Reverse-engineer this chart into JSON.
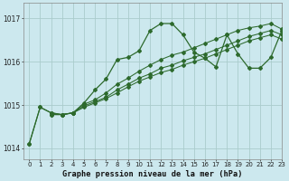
{
  "title": "Graphe pression niveau de la mer (hPa)",
  "bg_color": "#cce8ee",
  "grid_color": "#aacccc",
  "line_color": "#2d6a2d",
  "xlim": [
    -0.5,
    23
  ],
  "ylim": [
    1013.75,
    1017.35
  ],
  "yticks": [
    1014,
    1015,
    1016,
    1017
  ],
  "xticks": [
    0,
    1,
    2,
    3,
    4,
    5,
    6,
    7,
    8,
    9,
    10,
    11,
    12,
    13,
    14,
    15,
    16,
    17,
    18,
    19,
    20,
    21,
    22,
    23
  ],
  "series": [
    {
      "x": [
        0,
        1,
        2,
        3,
        4,
        5,
        6,
        7,
        8,
        9,
        10,
        11,
        12,
        13,
        14,
        15,
        16,
        17,
        18,
        19,
        20,
        21,
        22,
        23
      ],
      "y": [
        1014.1,
        1014.95,
        1014.82,
        1014.78,
        1014.82,
        1015.05,
        1015.35,
        1015.6,
        1016.05,
        1016.1,
        1016.25,
        1016.72,
        1016.88,
        1016.88,
        1016.62,
        1016.22,
        1016.08,
        1015.88,
        1016.62,
        1016.18,
        1015.85,
        1015.85,
        1016.1,
        1016.72
      ]
    },
    {
      "x": [
        0,
        1,
        2,
        3,
        4,
        5,
        6,
        7,
        8,
        9,
        10,
        11,
        12,
        13,
        14,
        15,
        16,
        17,
        18,
        19,
        20,
        21,
        22,
        23
      ],
      "y": [
        1014.1,
        1014.95,
        1014.82,
        1014.78,
        1014.82,
        1015.02,
        1015.12,
        1015.28,
        1015.48,
        1015.62,
        1015.78,
        1015.92,
        1016.05,
        1016.15,
        1016.22,
        1016.32,
        1016.42,
        1016.52,
        1016.62,
        1016.72,
        1016.78,
        1016.82,
        1016.88,
        1016.75
      ]
    },
    {
      "x": [
        2,
        3,
        4,
        5,
        6,
        7,
        8,
        9,
        10,
        11,
        12,
        13,
        14,
        15,
        16,
        17,
        18,
        19,
        20,
        21,
        22,
        23
      ],
      "y": [
        1014.78,
        1014.78,
        1014.82,
        1014.98,
        1015.08,
        1015.18,
        1015.35,
        1015.48,
        1015.62,
        1015.72,
        1015.85,
        1015.92,
        1016.02,
        1016.1,
        1016.18,
        1016.28,
        1016.38,
        1016.48,
        1016.58,
        1016.65,
        1016.72,
        1016.62
      ]
    },
    {
      "x": [
        2,
        3,
        4,
        5,
        6,
        7,
        8,
        9,
        10,
        11,
        12,
        13,
        14,
        15,
        16,
        17,
        18,
        19,
        20,
        21,
        22,
        23
      ],
      "y": [
        1014.78,
        1014.78,
        1014.82,
        1014.95,
        1015.05,
        1015.15,
        1015.28,
        1015.42,
        1015.55,
        1015.65,
        1015.75,
        1015.82,
        1015.92,
        1016.0,
        1016.08,
        1016.18,
        1016.28,
        1016.38,
        1016.48,
        1016.55,
        1016.62,
        1016.52
      ]
    }
  ]
}
